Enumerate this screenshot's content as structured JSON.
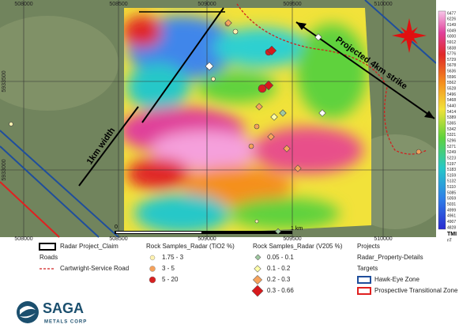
{
  "map": {
    "x_labels": [
      "508000",
      "508500",
      "509000",
      "509500",
      "510000"
    ],
    "y_labels": [
      "5933500",
      "5933000"
    ],
    "color_scale": {
      "title": "TMI",
      "unit": "nT",
      "labels": [
        "6477",
        "6226",
        "6149",
        "6049",
        "6000",
        "5912",
        "5838",
        "5776",
        "5729",
        "5678",
        "5636",
        "5596",
        "5562",
        "5528",
        "5496",
        "5468",
        "5440",
        "5414",
        "5389",
        "5365",
        "5342",
        "5321",
        "5296",
        "5271",
        "5249",
        "5223",
        "5197",
        "5183",
        "5159",
        "5132",
        "5110",
        "5085",
        "5059",
        "5031",
        "4999",
        "4961",
        "4907",
        "4828"
      ]
    },
    "annotations": {
      "width": "1km width",
      "strike": "Projected 4km strike",
      "scale_zero": "0",
      "scale_km": "1 km"
    },
    "legend": {
      "claim": "Radar Project_Claim",
      "roads": "Roads",
      "road": "Cartwright-Service Road",
      "tio2": {
        "title": "Rock Samples_Radar (TiO2 %)",
        "items": [
          "1.75 - 3",
          "3 - 5",
          "5 - 20"
        ]
      },
      "v2o5": {
        "title": "Rock Samples_Radar (V205 %)",
        "items": [
          "0.05 - 0.1",
          "0.1 - 0.2",
          "0.2 - 0.3",
          "0.3 - 0.66"
        ]
      },
      "projects": "Projects",
      "property": "Radar_Property-Details",
      "targets": "Targets",
      "hawkeye": "Hawk-Eye Zone",
      "transitional": "Prospective Transitional Zone"
    },
    "logo": {
      "name": "SAGA",
      "sub": "METALS CORP"
    }
  }
}
